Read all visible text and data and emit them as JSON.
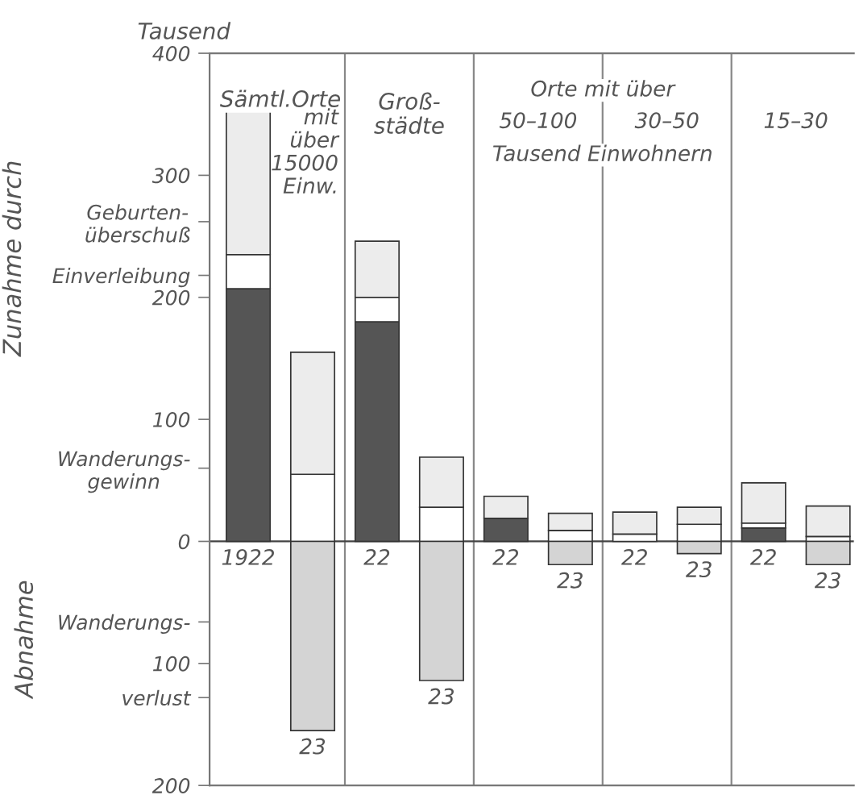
{
  "chart_data": {
    "type": "bar",
    "stacked": true,
    "ylabel": "Zunahme durch",
    "categories": [
      "1922",
      "23",
      "22",
      "23",
      "22",
      "23",
      "22",
      "23",
      "22",
      "23"
    ],
    "series": [
      {
        "color": "#555555",
        "values": [
          207,
          null,
          180,
          null,
          19,
          null,
          null,
          null,
          11,
          null
        ]
      },
      {
        "color": "#ffffff",
        "values": [
          28,
          55,
          20,
          28,
          null,
          9,
          6,
          14,
          4,
          4
        ]
      },
      {
        "color": "#ececec",
        "values": [
          118,
          100,
          46,
          41,
          18,
          14,
          18,
          14,
          33,
          25
        ]
      },
      {
        "color": "#d4d4d4",
        "values": [
          null,
          -155,
          null,
          -114,
          null,
          -19,
          null,
          -10,
          null,
          -19
        ]
      }
    ],
    "ylim": [
      -200,
      400
    ],
    "yticks": [
      {
        "value": -200,
        "label": "200"
      },
      {
        "value": -128,
        "label": "verlust"
      },
      {
        "value": -100,
        "label": "100"
      },
      {
        "value": -66,
        "label": "Wanderungs-"
      },
      0,
      {
        "value": 60,
        "label": "Wanderungs-\ngewinn"
      },
      100,
      200,
      {
        "value": 218,
        "label": "Einverleibung"
      },
      {
        "value": 262,
        "label": "Geburten-\nüberschuß"
      },
      300,
      400
    ],
    "annotations": [
      "Tausend",
      "Sämtl.Orte",
      "mit\nüber\n15000\nEinw.",
      "Groß-\nstädte",
      "Orte mit über",
      "50–100",
      "30–50",
      "15–30",
      "Tausend Einwohnern",
      "Abnahme"
    ],
    "grid": false,
    "legend": false
  }
}
